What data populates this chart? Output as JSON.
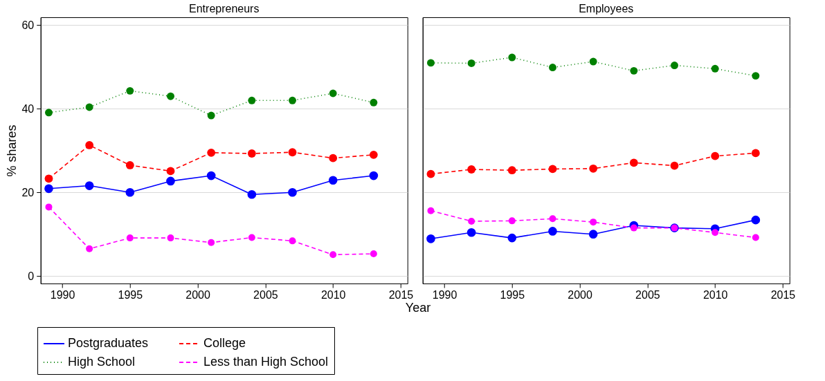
{
  "chart_data": [
    {
      "type": "line",
      "title": "Entrepreneurs",
      "ylabel": "% shares",
      "xlabel": "Year",
      "x": [
        1989,
        1992,
        1995,
        1998,
        2001,
        2004,
        2007,
        2010,
        2013
      ],
      "xlim": [
        1988.4,
        2015.5
      ],
      "xticks": [
        1990,
        1995,
        2000,
        2005,
        2010,
        2015
      ],
      "ylim": [
        -1.8,
        61.9
      ],
      "yticks": [
        0,
        20,
        40,
        60
      ],
      "grid": "y",
      "marker": "circle",
      "legend": "bottom",
      "series": [
        {
          "name": "Postgraduates",
          "color": "#0000ff",
          "line_style": "solid",
          "values": [
            20.9,
            21.6,
            20.0,
            22.7,
            24.0,
            19.5,
            20.0,
            22.9,
            24.0
          ]
        },
        {
          "name": "College",
          "color": "#ff0000",
          "line_style": "dashed",
          "values": [
            23.3,
            31.3,
            26.5,
            25.1,
            29.5,
            29.3,
            29.6,
            28.2,
            29.0
          ]
        },
        {
          "name": "High School",
          "color": "#008000",
          "line_style": "dotted",
          "values": [
            39.1,
            40.4,
            44.3,
            43.0,
            38.4,
            42.0,
            42.0,
            43.7,
            41.5
          ]
        },
        {
          "name": "Less than High School",
          "color": "#ff00ff",
          "line_style": "dashed",
          "values": [
            16.5,
            6.5,
            9.1,
            9.1,
            8.0,
            9.2,
            8.4,
            5.1,
            5.3
          ]
        }
      ]
    },
    {
      "type": "line",
      "title": "Employees",
      "x": [
        1989,
        1992,
        1995,
        1998,
        2001,
        2004,
        2007,
        2010,
        2013
      ],
      "xlim": [
        1988.4,
        2015.5
      ],
      "xticks": [
        1990,
        1995,
        2000,
        2005,
        2010,
        2015
      ],
      "ylim": [
        -1.8,
        61.9
      ],
      "yticks": [
        0,
        20,
        40,
        60
      ],
      "grid": "y",
      "marker": "circle",
      "tick_labels": "x",
      "series": [
        {
          "name": "Postgraduates",
          "color": "#0000ff",
          "line_style": "solid",
          "values": [
            8.9,
            10.4,
            9.1,
            10.7,
            10.0,
            12.1,
            11.5,
            11.3,
            13.4
          ]
        },
        {
          "name": "College",
          "color": "#ff0000",
          "line_style": "dashed",
          "values": [
            24.4,
            25.5,
            25.3,
            25.6,
            25.7,
            27.1,
            26.4,
            28.7,
            29.4
          ]
        },
        {
          "name": "High School",
          "color": "#008000",
          "line_style": "dotted",
          "values": [
            51.0,
            50.9,
            52.3,
            49.9,
            51.3,
            49.1,
            50.4,
            49.6,
            47.9
          ]
        },
        {
          "name": "Less than High School",
          "color": "#ff00ff",
          "line_style": "dashed",
          "values": [
            15.6,
            13.1,
            13.2,
            13.7,
            12.9,
            11.5,
            11.5,
            10.4,
            9.2
          ]
        }
      ]
    }
  ]
}
